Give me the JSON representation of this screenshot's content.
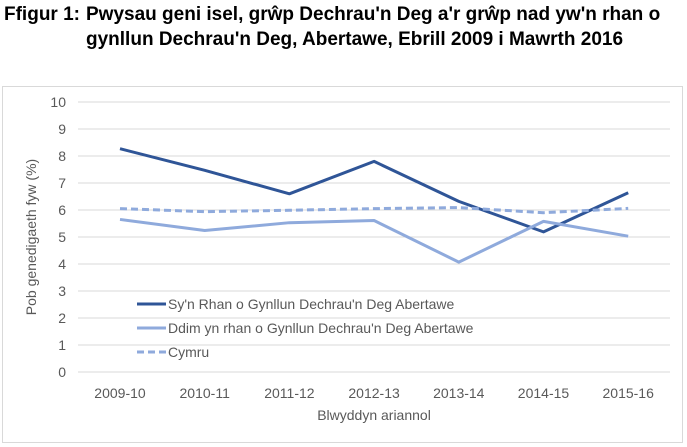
{
  "title": {
    "label": "Ffigur 1:",
    "text": "Pwysau geni isel, grŵp Dechrau'n Deg a'r grŵp nad yw'n rhan o gynllun Dechrau'n Deg, Abertawe, Ebrill 2009 i Mawrth 2016"
  },
  "chart_data": {
    "type": "line",
    "xlabel": "Blwyddyn ariannol",
    "ylabel": "Pob genedigaeth fyw (%)",
    "ylim": [
      0,
      10
    ],
    "yticks": [
      "0",
      "1",
      "2",
      "3",
      "4",
      "5",
      "6",
      "7",
      "8",
      "9",
      "10"
    ],
    "categories": [
      "2009-10",
      "2010-11",
      "2011-12",
      "2012-13",
      "2013-14",
      "2014-15",
      "2015-16"
    ],
    "grid": true,
    "legend_position": "bottom-left inside",
    "series": [
      {
        "name": "Sy'n Rhan o Gynllun Dechrau'n Deg Abertawe",
        "color": "#2f5597",
        "style": "solid",
        "values": [
          8.27,
          7.47,
          6.6,
          7.8,
          6.32,
          5.19,
          6.64
        ]
      },
      {
        "name": "Ddim yn rhan o Gynllun Dechrau'n Deg Abertawe",
        "color": "#8faadc",
        "style": "solid",
        "values": [
          5.65,
          5.24,
          5.53,
          5.61,
          4.07,
          5.58,
          5.03
        ]
      },
      {
        "name": "Cymru",
        "color": "#8faadc",
        "style": "dashed",
        "values": [
          6.05,
          5.94,
          5.99,
          6.05,
          6.09,
          5.9,
          6.06
        ]
      }
    ]
  }
}
